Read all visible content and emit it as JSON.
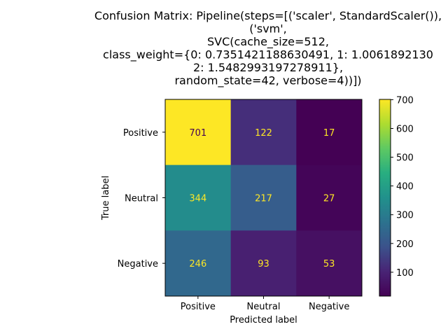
{
  "chart_data": {
    "type": "heatmap",
    "title_lines": [
      "Confusion Matrix: Pipeline(steps=[('scaler', StandardScaler()),",
      "('svm',",
      "SVC(cache_size=512,",
      "class_weight={0: 0.7351421188630491, 1: 1.0061892130",
      "2: 1.5482993197278911},",
      "random_state=42, verbose=4))])"
    ],
    "xlabel": "Predicted label",
    "ylabel": "True label",
    "x_categories": [
      "Positive",
      "Neutral",
      "Negative"
    ],
    "y_categories": [
      "Positive",
      "Neutral",
      "Negative"
    ],
    "values": [
      [
        701,
        122,
        17
      ],
      [
        344,
        217,
        27
      ],
      [
        246,
        93,
        53
      ]
    ],
    "colormap": "viridis",
    "colorbar": {
      "min": 17,
      "max": 701,
      "ticks": [
        100,
        200,
        300,
        400,
        500,
        600,
        700
      ]
    },
    "cell_text_color_light": "#fde725",
    "cell_text_color_dark": "#440154"
  }
}
